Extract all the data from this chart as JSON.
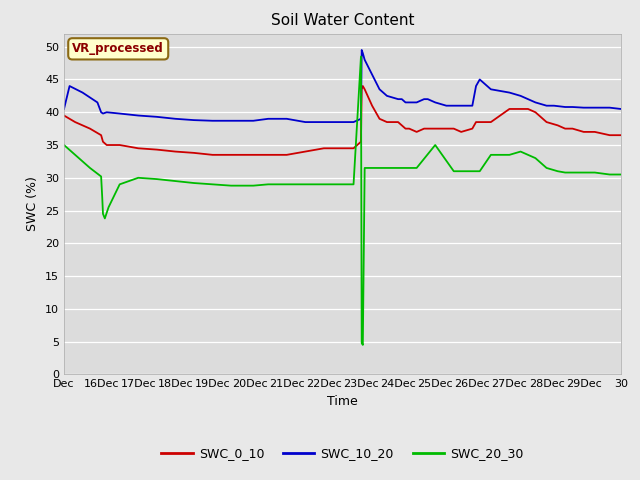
{
  "title": "Soil Water Content",
  "xlabel": "Time",
  "ylabel": "SWC (%)",
  "annotation": "VR_processed",
  "ylim": [
    0,
    52
  ],
  "yticks": [
    0,
    5,
    10,
    15,
    20,
    25,
    30,
    35,
    40,
    45,
    50
  ],
  "fig_facecolor": "#e8e8e8",
  "ax_facecolor": "#dcdcdc",
  "grid_color": "#ffffff",
  "colors": [
    "#cc0000",
    "#0000cc",
    "#00bb00"
  ],
  "line_width": 1.3,
  "x_tick_labels": [
    "Dec",
    "16Dec",
    "17Dec",
    "18Dec",
    "19Dec",
    "20Dec",
    "21Dec",
    "22Dec",
    "23Dec",
    "24Dec",
    "25Dec",
    "26Dec",
    "27Dec",
    "28Dec",
    "29Dec",
    "30"
  ],
  "red_x": [
    0,
    0.3,
    0.7,
    1.0,
    1.05,
    1.15,
    1.5,
    2.0,
    2.5,
    3.0,
    3.5,
    4.0,
    4.5,
    4.9,
    5.0,
    5.05,
    5.15,
    5.5,
    6.0,
    6.5,
    7.0,
    7.5,
    7.8,
    8.0,
    8.02,
    8.05,
    8.1,
    8.3,
    8.5,
    8.7,
    9.0,
    9.1,
    9.2,
    9.3,
    9.5,
    9.7,
    10.0,
    10.3,
    10.5,
    10.7,
    11.0,
    11.1,
    11.2,
    11.5,
    12.0,
    12.3,
    12.5,
    12.7,
    13.0,
    13.3,
    13.5,
    13.7,
    14.0,
    14.3,
    14.7,
    15.0
  ],
  "red_y": [
    39.5,
    38.5,
    37.5,
    36.5,
    35.5,
    35.0,
    35.0,
    34.5,
    34.3,
    34.0,
    33.8,
    33.5,
    33.5,
    33.5,
    33.5,
    33.5,
    33.5,
    33.5,
    33.5,
    34.0,
    34.5,
    34.5,
    34.5,
    35.5,
    43.5,
    44.0,
    43.5,
    41.0,
    39.0,
    38.5,
    38.5,
    38.0,
    37.5,
    37.5,
    37.0,
    37.5,
    37.5,
    37.5,
    37.5,
    37.0,
    37.5,
    38.5,
    38.5,
    38.5,
    40.5,
    40.5,
    40.5,
    40.0,
    38.5,
    38.0,
    37.5,
    37.5,
    37.0,
    37.0,
    36.5,
    36.5
  ],
  "blue_x": [
    0,
    0.15,
    0.5,
    0.9,
    1.0,
    1.05,
    1.15,
    1.5,
    2.0,
    2.5,
    3.0,
    3.5,
    4.0,
    4.5,
    4.9,
    5.0,
    5.02,
    5.05,
    5.1,
    5.5,
    6.0,
    6.5,
    7.0,
    7.5,
    7.8,
    8.0,
    8.02,
    8.05,
    8.1,
    8.5,
    8.7,
    9.0,
    9.1,
    9.2,
    9.3,
    9.5,
    9.7,
    9.8,
    10.0,
    10.3,
    10.5,
    10.7,
    11.0,
    11.1,
    11.2,
    11.3,
    11.5,
    12.0,
    12.3,
    12.5,
    12.7,
    13.0,
    13.2,
    13.5,
    13.7,
    14.0,
    14.3,
    14.7,
    15.0
  ],
  "blue_y": [
    40.5,
    44.0,
    43.0,
    41.5,
    40.0,
    39.8,
    40.0,
    39.8,
    39.5,
    39.3,
    39.0,
    38.8,
    38.7,
    38.7,
    38.7,
    38.7,
    38.7,
    38.7,
    38.7,
    39.0,
    39.0,
    38.5,
    38.5,
    38.5,
    38.5,
    39.0,
    49.5,
    49.0,
    48.0,
    43.5,
    42.5,
    42.0,
    42.0,
    41.5,
    41.5,
    41.5,
    42.0,
    42.0,
    41.5,
    41.0,
    41.0,
    41.0,
    41.0,
    44.0,
    45.0,
    44.5,
    43.5,
    43.0,
    42.5,
    42.0,
    41.5,
    41.0,
    41.0,
    40.8,
    40.8,
    40.7,
    40.7,
    40.7,
    40.5
  ],
  "green_x": [
    0,
    0.3,
    0.7,
    1.0,
    1.03,
    1.05,
    1.1,
    1.2,
    1.5,
    2.0,
    2.5,
    3.0,
    3.5,
    4.0,
    4.5,
    4.9,
    5.0,
    5.02,
    5.05,
    5.1,
    5.5,
    6.0,
    6.5,
    7.0,
    7.5,
    7.8,
    8.0,
    8.02,
    8.05,
    8.1,
    8.5,
    9.0,
    9.2,
    9.5,
    10.0,
    10.5,
    10.7,
    10.9,
    11.0,
    11.05,
    11.1,
    11.2,
    11.5,
    12.0,
    12.3,
    12.5,
    12.7,
    13.0,
    13.3,
    13.5,
    13.7,
    14.0,
    14.3,
    14.7,
    15.0
  ],
  "green_y": [
    35.0,
    33.5,
    31.5,
    30.2,
    27.0,
    24.5,
    23.8,
    25.5,
    29.0,
    30.0,
    29.8,
    29.5,
    29.2,
    29.0,
    28.8,
    28.8,
    28.8,
    28.8,
    28.8,
    28.8,
    29.0,
    29.0,
    29.0,
    29.0,
    29.0,
    29.0,
    48.5,
    4.8,
    4.5,
    31.5,
    31.5,
    31.5,
    31.5,
    31.5,
    35.0,
    31.0,
    31.0,
    31.0,
    31.0,
    31.0,
    31.0,
    31.0,
    33.5,
    33.5,
    34.0,
    33.5,
    33.0,
    31.5,
    31.0,
    30.8,
    30.8,
    30.8,
    30.8,
    30.5,
    30.5
  ]
}
